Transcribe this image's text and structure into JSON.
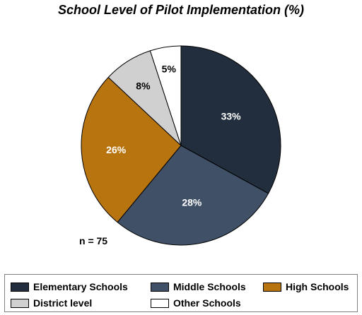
{
  "chart_data": {
    "type": "pie",
    "title": "School Level of Pilot Implementation (%)",
    "note": "n = 75",
    "legend_position": "bottom",
    "slices": [
      {
        "label": "Elementary Schools",
        "value": 33,
        "display": "33%",
        "color": "#222e3d",
        "text_color": "#ffffff"
      },
      {
        "label": "Middle Schools",
        "value": 28,
        "display": "28%",
        "color": "#3f5067",
        "text_color": "#ffffff"
      },
      {
        "label": "High Schools",
        "value": 26,
        "display": "26%",
        "color": "#b8740f",
        "text_color": "#ffffff"
      },
      {
        "label": "District level",
        "value": 8,
        "display": "8%",
        "color": "#d0d0d0",
        "text_color": "#000000"
      },
      {
        "label": "Other Schools",
        "value": 5,
        "display": "5%",
        "color": "#ffffff",
        "text_color": "#000000"
      }
    ]
  }
}
